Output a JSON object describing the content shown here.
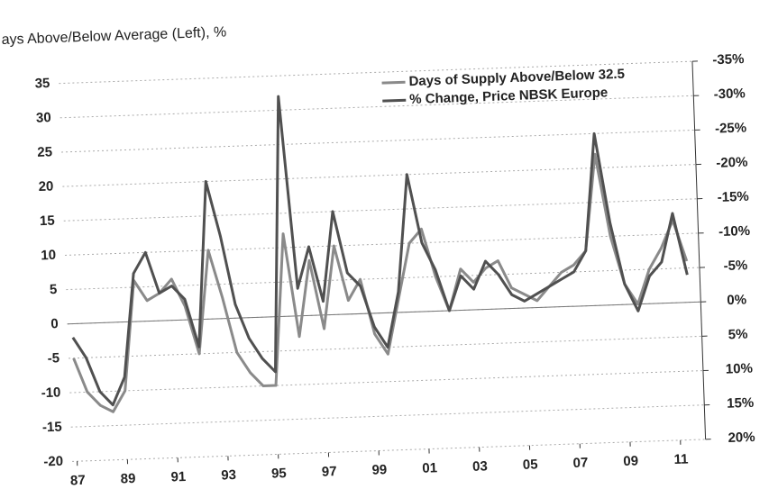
{
  "chart_data": {
    "type": "line",
    "title": "ays Above/Below Average (Left), %",
    "x": [
      1987,
      1987.5,
      1988,
      1988.5,
      1989,
      1989.5,
      1990,
      1990.5,
      1991,
      1991.5,
      1992,
      1992.5,
      1993,
      1993.5,
      1994,
      1994.5,
      1995,
      1995.5,
      1996,
      1996.5,
      1997,
      1997.5,
      1998,
      1998.5,
      1999,
      1999.5,
      2000,
      2000.5,
      2001,
      2001.5,
      2002,
      2002.5,
      2003,
      2003.5,
      2004,
      2004.5,
      2005,
      2005.5,
      2006,
      2006.5,
      2007,
      2007.5,
      2008,
      2008.5,
      2009,
      2009.5,
      2010,
      2010.5,
      2011,
      2011.5
    ],
    "series": [
      {
        "name": "Days of Supply Above/Below 32.5",
        "color": "#8a8a8a",
        "values": [
          -5,
          -10,
          -12,
          -13,
          -10,
          6,
          3,
          4,
          6,
          2,
          -5,
          10,
          3,
          -5,
          -8,
          -10,
          -10,
          12,
          -3,
          8,
          -2,
          10,
          2,
          5,
          -3,
          -6,
          2,
          10,
          12,
          5,
          0,
          6,
          4,
          6,
          7,
          3,
          2,
          1,
          3,
          5,
          6,
          8,
          22,
          10,
          3,
          0,
          5,
          8,
          12,
          6
        ]
      },
      {
        "name": "% Change, Price NBSK Europe",
        "color": "#505050",
        "axis": "y2",
        "values": [
          2,
          5,
          10,
          12,
          8,
          -7,
          -10,
          -4,
          -5,
          -3,
          4,
          -20,
          -12,
          -2,
          3,
          6,
          8,
          -32,
          -4,
          -10,
          -2,
          -15,
          -6,
          -4,
          2,
          5,
          -3,
          -20,
          -10,
          -6,
          0,
          -5,
          -3,
          -7,
          -5,
          -2,
          -1,
          -2,
          -3,
          -4,
          -5,
          -8,
          -25,
          -12,
          -3,
          1,
          -4,
          -6,
          -13,
          -4
        ]
      }
    ],
    "ylim": [
      -20,
      35
    ],
    "yticks": [
      -20,
      -15,
      -10,
      -5,
      0,
      5,
      10,
      15,
      20,
      25,
      30,
      35
    ],
    "y2lim": [
      20,
      -35
    ],
    "y2ticks": [
      {
        "value": -35,
        "label": "-35%"
      },
      {
        "value": -30,
        "label": "-30%"
      },
      {
        "value": -25,
        "label": "-25%"
      },
      {
        "value": -20,
        "label": "-20%"
      },
      {
        "value": -15,
        "label": "-15%"
      },
      {
        "value": -10,
        "label": "-10%"
      },
      {
        "value": -5,
        "label": "-5%"
      },
      {
        "value": 0,
        "label": "0%"
      },
      {
        "value": 5,
        "label": "5%"
      },
      {
        "value": 10,
        "label": "10%"
      },
      {
        "value": 15,
        "label": "15%"
      },
      {
        "value": 20,
        "label": "20%"
      }
    ],
    "xlim": [
      1986.8,
      2012
    ],
    "xticks": [
      {
        "value": 1987,
        "label": "87"
      },
      {
        "value": 1989,
        "label": "89"
      },
      {
        "value": 1991,
        "label": "91"
      },
      {
        "value": 1993,
        "label": "93"
      },
      {
        "value": 1995,
        "label": "95"
      },
      {
        "value": 1997,
        "label": "97"
      },
      {
        "value": 1999,
        "label": "99"
      },
      {
        "value": 2001,
        "label": "01"
      },
      {
        "value": 2003,
        "label": "03"
      },
      {
        "value": 2005,
        "label": "05"
      },
      {
        "value": 2007,
        "label": "07"
      },
      {
        "value": 2009,
        "label": "09"
      },
      {
        "value": 2011,
        "label": "11"
      }
    ],
    "grid": true,
    "legend": "top"
  }
}
